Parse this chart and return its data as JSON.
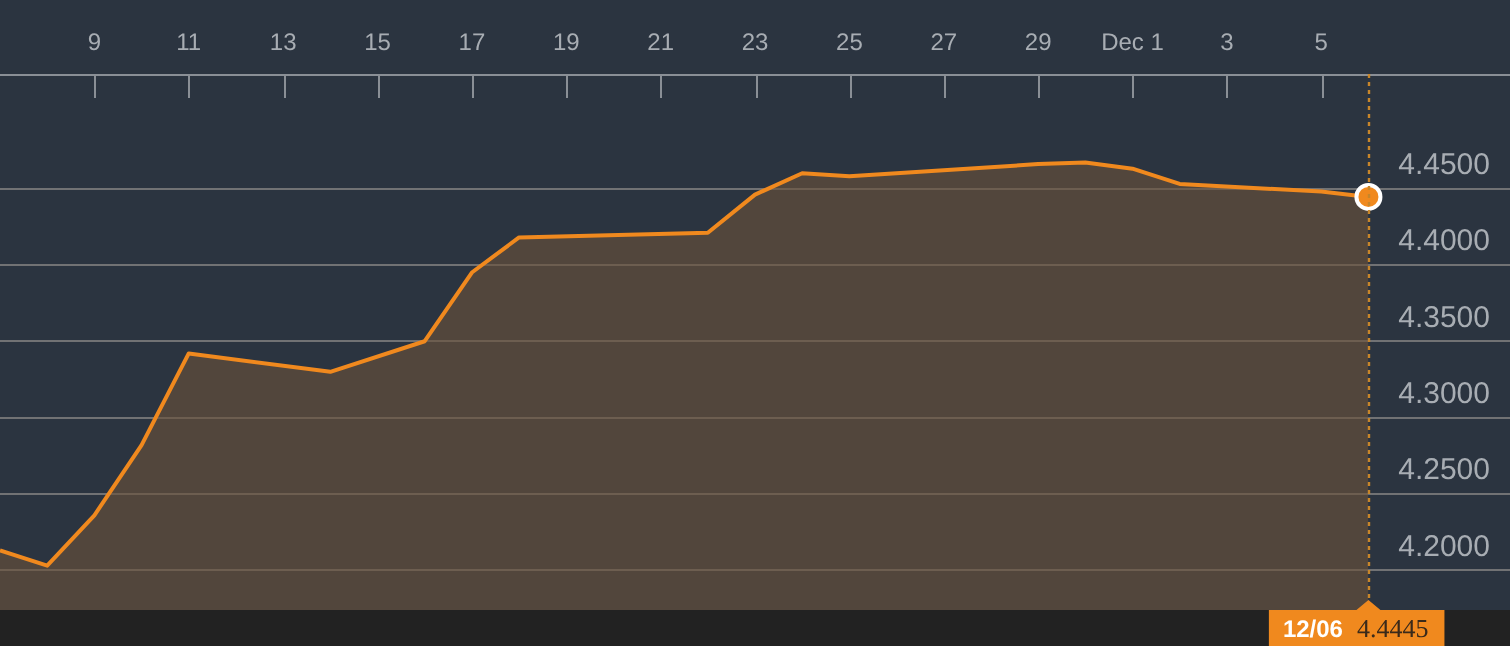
{
  "chart_data": {
    "type": "area",
    "x": [
      "--11-07",
      "--11-08",
      "--11-09",
      "--11-10",
      "--11-11",
      "--11-14",
      "--11-16",
      "--11-17",
      "--11-18",
      "--11-22",
      "--11-23",
      "--11-24",
      "--11-25",
      "--11-29",
      "--11-30",
      "--12-01",
      "--12-02",
      "--12-05",
      "--12-06"
    ],
    "series": [
      {
        "color": "#f0891e",
        "values": [
          4.213,
          4.203,
          4.236,
          4.282,
          4.342,
          4.33,
          4.35,
          4.395,
          4.418,
          4.421,
          4.446,
          4.46,
          4.458,
          4.466,
          4.467,
          4.463,
          4.453,
          4.448,
          4.4445
        ]
      }
    ],
    "xlim": [
      "--11-07",
      "--12-09"
    ],
    "xticks": [
      {
        "value": "--11-09",
        "label": "9"
      },
      {
        "value": "--11-11",
        "label": "11"
      },
      {
        "value": "--11-13",
        "label": "13"
      },
      {
        "value": "--11-15",
        "label": "15"
      },
      {
        "value": "--11-17",
        "label": "17"
      },
      {
        "value": "--11-19",
        "label": "19"
      },
      {
        "value": "--11-21",
        "label": "21"
      },
      {
        "value": "--11-23",
        "label": "23"
      },
      {
        "value": "--11-25",
        "label": "25"
      },
      {
        "value": "--11-27",
        "label": "27"
      },
      {
        "value": "--11-29",
        "label": "29"
      },
      {
        "value": "--12-01",
        "label": "Dec 1"
      },
      {
        "value": "--12-03",
        "label": "3"
      },
      {
        "value": "--12-05",
        "label": "5"
      }
    ],
    "ylim": [
      4.174,
      4.525
    ],
    "yticks": [
      {
        "value": 4.2,
        "label": "4.2000"
      },
      {
        "value": 4.25,
        "label": "4.2500"
      },
      {
        "value": 4.3,
        "label": "4.3000"
      },
      {
        "value": 4.35,
        "label": "4.3500"
      },
      {
        "value": 4.4,
        "label": "4.4000"
      },
      {
        "value": 4.45,
        "label": "4.4500"
      }
    ],
    "grid": "y",
    "marker": "none",
    "legend": false,
    "ref_lines": [
      {
        "axis": "x",
        "value": "--12-06",
        "color": "#c8862a",
        "line_style": "dotted"
      }
    ],
    "annotations": [
      "12/06 4.4445"
    ]
  }
}
